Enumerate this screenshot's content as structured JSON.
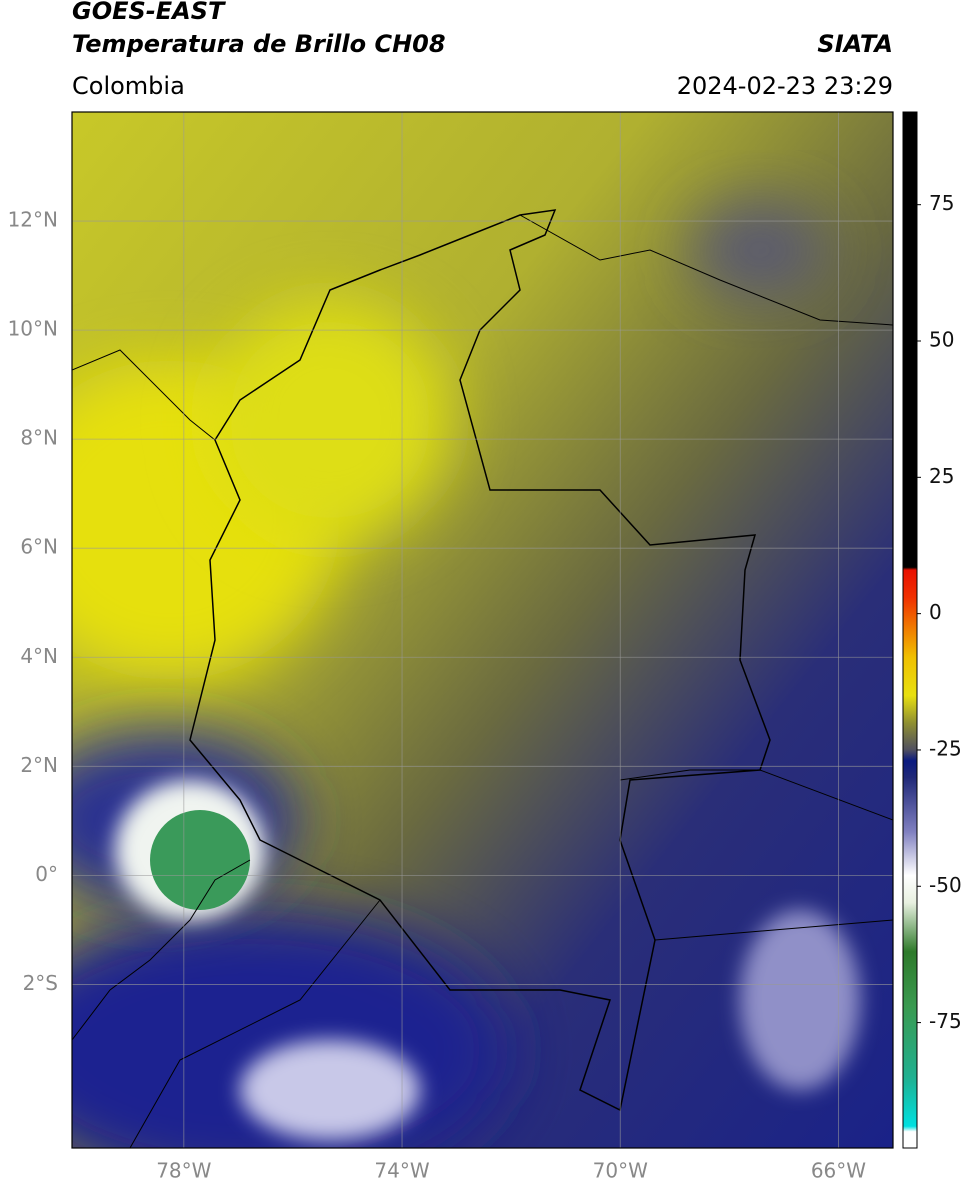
{
  "header": {
    "product": "GOES-EAST",
    "title": "Temperatura de Brillo CH08",
    "source": "SIATA",
    "region": "Colombia",
    "datetime": "2024-02-23 23:29"
  },
  "map": {
    "xlim": [
      -80.05,
      -65
    ],
    "ylim": [
      -5,
      14
    ],
    "xticks": [
      {
        "value": -78,
        "label": "78°W"
      },
      {
        "value": -74,
        "label": "74°W"
      },
      {
        "value": -70,
        "label": "70°W"
      },
      {
        "value": -66,
        "label": "66°W"
      }
    ],
    "yticks": [
      {
        "value": 12,
        "label": "12°N"
      },
      {
        "value": 10,
        "label": "10°N"
      },
      {
        "value": 8,
        "label": "8°N"
      },
      {
        "value": 6,
        "label": "6°N"
      },
      {
        "value": 4,
        "label": "4°N"
      },
      {
        "value": 2,
        "label": "2°N"
      },
      {
        "value": 0,
        "label": "0°"
      },
      {
        "value": -2,
        "label": "2°S"
      }
    ],
    "grid": true
  },
  "colorbar": {
    "lim": [
      -98,
      92
    ],
    "ticks": [
      75,
      50,
      25,
      0,
      -25,
      -50,
      -75
    ],
    "colormap": [
      {
        "value": -98,
        "color": "#ffffff"
      },
      {
        "value": -95,
        "color": "#ffffff"
      },
      {
        "value": -94,
        "color": "#00e0e0"
      },
      {
        "value": -85,
        "color": "#20b090"
      },
      {
        "value": -72,
        "color": "#3a9a50"
      },
      {
        "value": -62,
        "color": "#2e7a2a"
      },
      {
        "value": -53,
        "color": "#e8f0e0"
      },
      {
        "value": -48,
        "color": "#ffffff"
      },
      {
        "value": -40,
        "color": "#8080c0"
      },
      {
        "value": -30,
        "color": "#202878"
      },
      {
        "value": -27,
        "color": "#0a1a80"
      },
      {
        "value": -25,
        "color": "#505060"
      },
      {
        "value": -20,
        "color": "#909030"
      },
      {
        "value": -15,
        "color": "#e8e010"
      },
      {
        "value": -8,
        "color": "#f0c000"
      },
      {
        "value": -3,
        "color": "#f08000"
      },
      {
        "value": 3,
        "color": "#f03000"
      },
      {
        "value": 8,
        "color": "#e81000"
      },
      {
        "value": 8.5,
        "color": "#000000"
      },
      {
        "value": 92,
        "color": "#000000"
      }
    ]
  }
}
